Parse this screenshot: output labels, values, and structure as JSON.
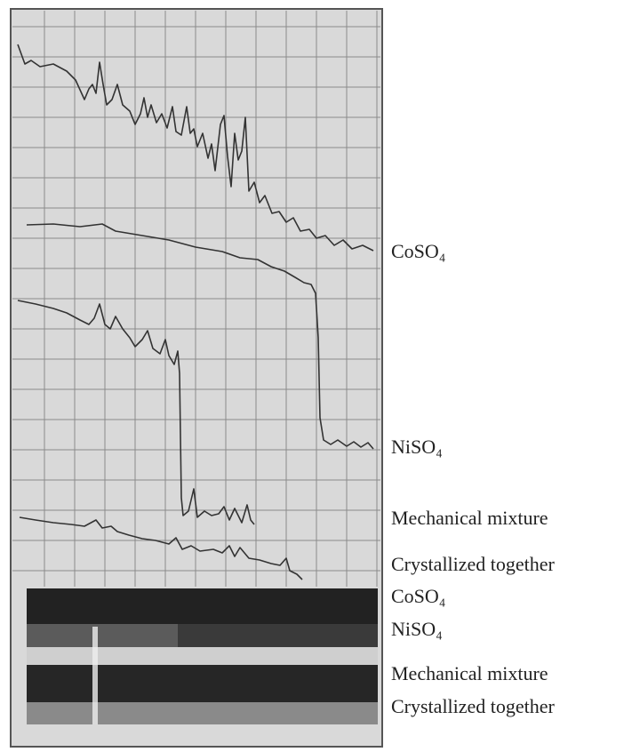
{
  "trace_labels": [
    "CoSO₄",
    "NiSO₄",
    "Mechanical mixture",
    "Crystallized together"
  ],
  "film_labels": [
    "CoSO₄",
    "NiSO₄",
    "Mechanical mixture",
    "Crystallized together"
  ]
}
